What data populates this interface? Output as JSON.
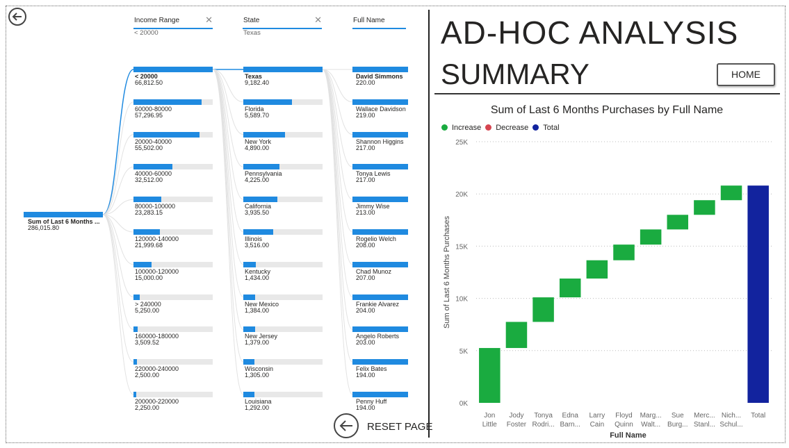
{
  "decomp": {
    "root": {
      "label": "Sum of Last 6 Months ...",
      "value": "286,015.80"
    },
    "columns": [
      {
        "header": "Income Range",
        "filter": "< 20000",
        "has_close": true
      },
      {
        "header": "State",
        "filter": "Texas",
        "has_close": true
      },
      {
        "header": "Full Name",
        "filter": "",
        "has_close": false
      }
    ],
    "income": [
      {
        "label": "< 20000",
        "value": "66,812.50",
        "fill": 1.0
      },
      {
        "label": "60000-80000",
        "value": "57,296.95",
        "fill": 0.86
      },
      {
        "label": "20000-40000",
        "value": "55,502.00",
        "fill": 0.83
      },
      {
        "label": "40000-60000",
        "value": "32,512.00",
        "fill": 0.49
      },
      {
        "label": "80000-100000",
        "value": "23,283.15",
        "fill": 0.35
      },
      {
        "label": "120000-140000",
        "value": "21,999.68",
        "fill": 0.33
      },
      {
        "label": "100000-120000",
        "value": "15,000.00",
        "fill": 0.23
      },
      {
        "label": "> 240000",
        "value": "5,250.00",
        "fill": 0.08
      },
      {
        "label": "160000-180000",
        "value": "3,509.52",
        "fill": 0.05
      },
      {
        "label": "220000-240000",
        "value": "2,500.00",
        "fill": 0.04
      },
      {
        "label": "200000-220000",
        "value": "2,250.00",
        "fill": 0.035
      }
    ],
    "state": [
      {
        "label": "Texas",
        "value": "9,182.40",
        "fill": 1.0
      },
      {
        "label": "Florida",
        "value": "5,589.70",
        "fill": 0.61
      },
      {
        "label": "New York",
        "value": "4,890.00",
        "fill": 0.53
      },
      {
        "label": "Pennsylvania",
        "value": "4,225.00",
        "fill": 0.46
      },
      {
        "label": "California",
        "value": "3,935.50",
        "fill": 0.43
      },
      {
        "label": "Illinois",
        "value": "3,516.00",
        "fill": 0.38
      },
      {
        "label": "Kentucky",
        "value": "1,434.00",
        "fill": 0.16
      },
      {
        "label": "New Mexico",
        "value": "1,384.00",
        "fill": 0.15
      },
      {
        "label": "New Jersey",
        "value": "1,379.00",
        "fill": 0.15
      },
      {
        "label": "Wisconsin",
        "value": "1,305.00",
        "fill": 0.14
      },
      {
        "label": "Louisiana",
        "value": "1,292.00",
        "fill": 0.14
      }
    ],
    "names": [
      {
        "label": "David Simmons",
        "value": "220.00",
        "fill": 1.0
      },
      {
        "label": "Wallace Davidson",
        "value": "219.00",
        "fill": 1.0
      },
      {
        "label": "Shannon Higgins",
        "value": "217.00",
        "fill": 1.0
      },
      {
        "label": "Tonya Lewis",
        "value": "217.00",
        "fill": 1.0
      },
      {
        "label": "Jimmy Wise",
        "value": "213.00",
        "fill": 1.0
      },
      {
        "label": "Rogelio Welch",
        "value": "208.00",
        "fill": 1.0
      },
      {
        "label": "Chad Munoz",
        "value": "207.00",
        "fill": 1.0
      },
      {
        "label": "Frankie Alvarez",
        "value": "204.00",
        "fill": 1.0
      },
      {
        "label": "Angelo Roberts",
        "value": "203.00",
        "fill": 1.0
      },
      {
        "label": "Felix Bates",
        "value": "194.00",
        "fill": 1.0
      },
      {
        "label": "Penny Huff",
        "value": "194.00",
        "fill": 1.0
      }
    ]
  },
  "header": {
    "line1": "AD-HOC ANALYSIS",
    "line2": "SUMMARY",
    "home_label": "HOME"
  },
  "reset_label": "RESET PAGE",
  "colors": {
    "accent": "#1f8ae0",
    "increase": "#1aab40",
    "decrease": "#d64550",
    "total": "#12239e"
  },
  "legend": [
    {
      "name": "Increase",
      "color": "#1aab40"
    },
    {
      "name": "Decrease",
      "color": "#d64550"
    },
    {
      "name": "Total",
      "color": "#12239e"
    }
  ],
  "chart_data": {
    "type": "waterfall",
    "title": "Sum of Last 6 Months Purchases by Full Name",
    "xlabel": "Full Name",
    "ylabel": "Sum of Last 6 Months Purchases",
    "ylim": [
      0,
      25000
    ],
    "yticks": [
      "0K",
      "5K",
      "10K",
      "15K",
      "20K",
      "25K"
    ],
    "grid": true,
    "legend_position": "top-left",
    "categories": [
      [
        "Jon",
        "Little"
      ],
      [
        "Jody",
        "Foster"
      ],
      [
        "Tonya",
        "Rodri..."
      ],
      [
        "Edna",
        "Barn..."
      ],
      [
        "Larry",
        "Cain"
      ],
      [
        "Floyd",
        "Quinn"
      ],
      [
        "Marg...",
        "Walt..."
      ],
      [
        "Sue",
        "Burg..."
      ],
      [
        "Merc...",
        "Stanl..."
      ],
      [
        "Nich...",
        "Schul..."
      ],
      [
        "Total",
        ""
      ]
    ],
    "increments": [
      5250,
      2500,
      2350,
      1800,
      1750,
      1500,
      1450,
      1400,
      1400,
      1400
    ],
    "total": 20800
  }
}
